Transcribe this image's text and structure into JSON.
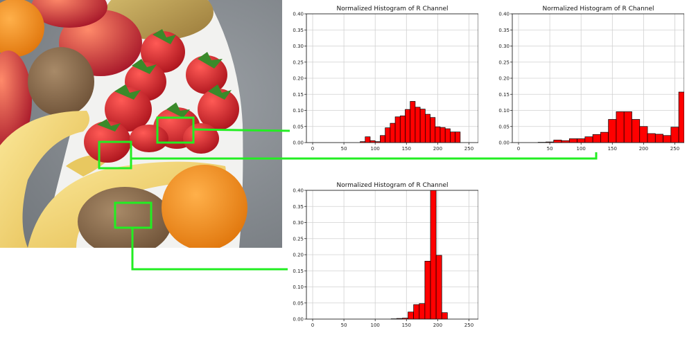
{
  "photo": {
    "subject": "fruit-bowl-photo",
    "colors": {
      "background": "#8b9095",
      "bowl": "#f4f4f2",
      "strawberry": "#c8141c",
      "orange": "#f08a18",
      "banana": "#f0d56a",
      "kiwi": "#8a6a48",
      "apple": "#c8283a"
    }
  },
  "connector_color": "#22ee22",
  "chart_data": [
    {
      "type": "bar",
      "title": "Normalized Histogram of R Channel",
      "xlim": [
        -10,
        265
      ],
      "ylim": [
        0,
        0.4
      ],
      "xticks": [
        "0",
        "50",
        "100",
        "150",
        "200",
        "250"
      ],
      "yticks": [
        "0.00",
        "0.05",
        "0.10",
        "0.15",
        "0.20",
        "0.25",
        "0.30",
        "0.35",
        "0.40"
      ],
      "grid": true,
      "bin_width": 8,
      "bars": [
        {
          "x": 80,
          "y": 0.003
        },
        {
          "x": 88,
          "y": 0.018
        },
        {
          "x": 96,
          "y": 0.006
        },
        {
          "x": 104,
          "y": 0.003
        },
        {
          "x": 112,
          "y": 0.022
        },
        {
          "x": 120,
          "y": 0.046
        },
        {
          "x": 128,
          "y": 0.06
        },
        {
          "x": 136,
          "y": 0.08
        },
        {
          "x": 144,
          "y": 0.083
        },
        {
          "x": 152,
          "y": 0.103
        },
        {
          "x": 160,
          "y": 0.128
        },
        {
          "x": 168,
          "y": 0.11
        },
        {
          "x": 176,
          "y": 0.104
        },
        {
          "x": 184,
          "y": 0.088
        },
        {
          "x": 192,
          "y": 0.078
        },
        {
          "x": 200,
          "y": 0.049
        },
        {
          "x": 208,
          "y": 0.047
        },
        {
          "x": 216,
          "y": 0.043
        },
        {
          "x": 224,
          "y": 0.033
        },
        {
          "x": 232,
          "y": 0.033
        }
      ]
    },
    {
      "type": "bar",
      "title": "Normalized Histogram of R Channel",
      "xlim": [
        -10,
        265
      ],
      "ylim": [
        0,
        0.4
      ],
      "xticks": [
        "0",
        "50",
        "100",
        "150",
        "200",
        "250"
      ],
      "yticks": [
        "0.00",
        "0.05",
        "0.10",
        "0.15",
        "0.20",
        "0.25",
        "0.30",
        "0.35",
        "0.40"
      ],
      "grid": true,
      "bin_width": 12.5,
      "bars": [
        {
          "x": 37.5,
          "y": 0.001
        },
        {
          "x": 50,
          "y": 0.002
        },
        {
          "x": 62.5,
          "y": 0.008
        },
        {
          "x": 75,
          "y": 0.006
        },
        {
          "x": 87.5,
          "y": 0.012
        },
        {
          "x": 100,
          "y": 0.012
        },
        {
          "x": 112.5,
          "y": 0.018
        },
        {
          "x": 125,
          "y": 0.025
        },
        {
          "x": 137.5,
          "y": 0.032
        },
        {
          "x": 150,
          "y": 0.072
        },
        {
          "x": 162.5,
          "y": 0.096
        },
        {
          "x": 175,
          "y": 0.096
        },
        {
          "x": 187.5,
          "y": 0.072
        },
        {
          "x": 200,
          "y": 0.05
        },
        {
          "x": 212.5,
          "y": 0.028
        },
        {
          "x": 225,
          "y": 0.026
        },
        {
          "x": 237.5,
          "y": 0.022
        },
        {
          "x": 250,
          "y": 0.048
        },
        {
          "x": 262.5,
          "y": 0.157
        }
      ]
    },
    {
      "type": "bar",
      "title": "Normalized Histogram of R Channel",
      "xlim": [
        -10,
        265
      ],
      "ylim": [
        0,
        0.4
      ],
      "xticks": [
        "0",
        "50",
        "100",
        "150",
        "200",
        "250"
      ],
      "yticks": [
        "0.00",
        "0.05",
        "0.10",
        "0.15",
        "0.20",
        "0.25",
        "0.30",
        "0.35",
        "0.40"
      ],
      "grid": true,
      "bin_width": 9,
      "bars": [
        {
          "x": 130,
          "y": 0.001
        },
        {
          "x": 139,
          "y": 0.002
        },
        {
          "x": 148,
          "y": 0.003
        },
        {
          "x": 157,
          "y": 0.022
        },
        {
          "x": 166,
          "y": 0.045
        },
        {
          "x": 175,
          "y": 0.048
        },
        {
          "x": 184,
          "y": 0.18
        },
        {
          "x": 193,
          "y": 0.4
        },
        {
          "x": 202,
          "y": 0.198
        },
        {
          "x": 211,
          "y": 0.02
        }
      ]
    }
  ]
}
